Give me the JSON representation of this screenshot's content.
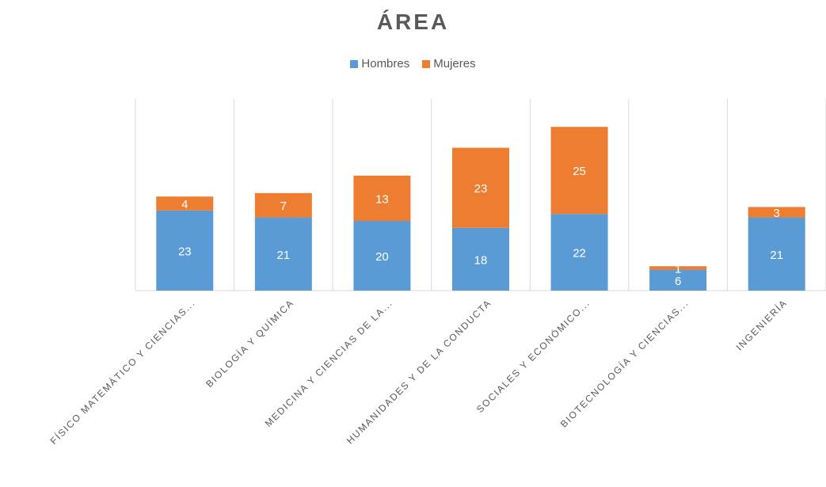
{
  "chart_data": {
    "type": "bar",
    "stacked": true,
    "title": "ÁREA",
    "categories": [
      "FÍSICO MATEMÁTICO Y CIENCIAS...",
      "BIOLOGÍA Y QUÍMICA",
      "MEDICINA Y CIENCIAS DE LA...",
      "HUMANIDADES Y DE LA CONDUCTA",
      "SOCIALES Y ECONÓMICO...",
      "BIOTECNOLOGÍA Y CIENCIAS...",
      "INGENIERÍA"
    ],
    "series": [
      {
        "name": "Hombres",
        "color": "#5b9bd5",
        "values": [
          23,
          21,
          20,
          18,
          22,
          6,
          21
        ]
      },
      {
        "name": "Mujeres",
        "color": "#ed7d31",
        "values": [
          4,
          7,
          13,
          23,
          25,
          1,
          3
        ]
      }
    ],
    "ylim": [
      0,
      55
    ],
    "legend_position": "top",
    "grid": "vertical category separators",
    "data_labels": true
  }
}
